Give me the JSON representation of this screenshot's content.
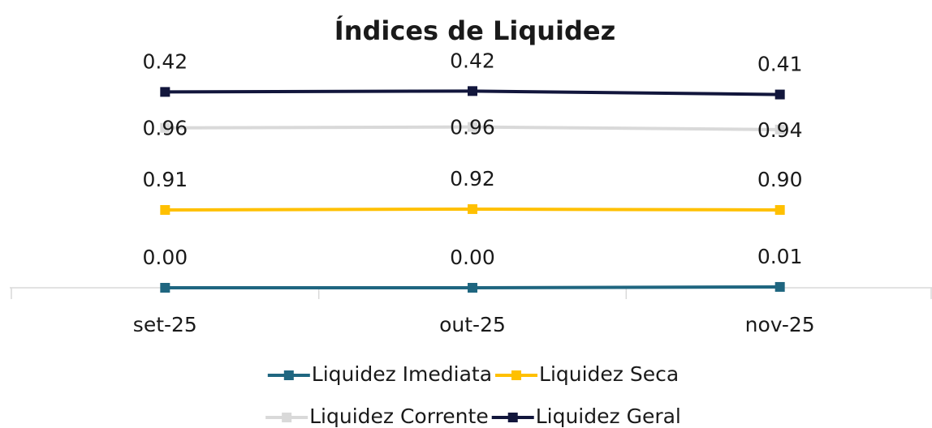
{
  "chart_data": {
    "type": "line",
    "stacked": true,
    "title": "Índices de Liquidez",
    "categories": [
      "set-25",
      "out-25",
      "nov-25"
    ],
    "ylim": [
      0,
      2.5
    ],
    "series": [
      {
        "name": "Liquidez Imediata",
        "color": "#1f6680",
        "values": [
          0,
          0,
          0.01
        ],
        "value_labels": [
          "0.00",
          "0.00",
          "0.01"
        ],
        "label_position": "above"
      },
      {
        "name": "Liquidez Seca",
        "color": "#ffc000",
        "values": [
          0.91,
          0.92,
          0.9
        ],
        "value_labels": [
          "0.91",
          "0.92",
          "0.90"
        ],
        "label_position": "above"
      },
      {
        "name": "Liquidez Corrente",
        "color": "#d9d9d9",
        "values": [
          0.96,
          0.96,
          0.94
        ],
        "value_labels": [
          "0.96",
          "0.96",
          "0.94"
        ],
        "label_position": "center"
      },
      {
        "name": "Liquidez Geral",
        "color": "#12163c",
        "values": [
          0.42,
          0.42,
          0.41
        ],
        "value_labels": [
          "0.42",
          "0.42",
          "0.41"
        ],
        "label_position": "above"
      }
    ]
  }
}
